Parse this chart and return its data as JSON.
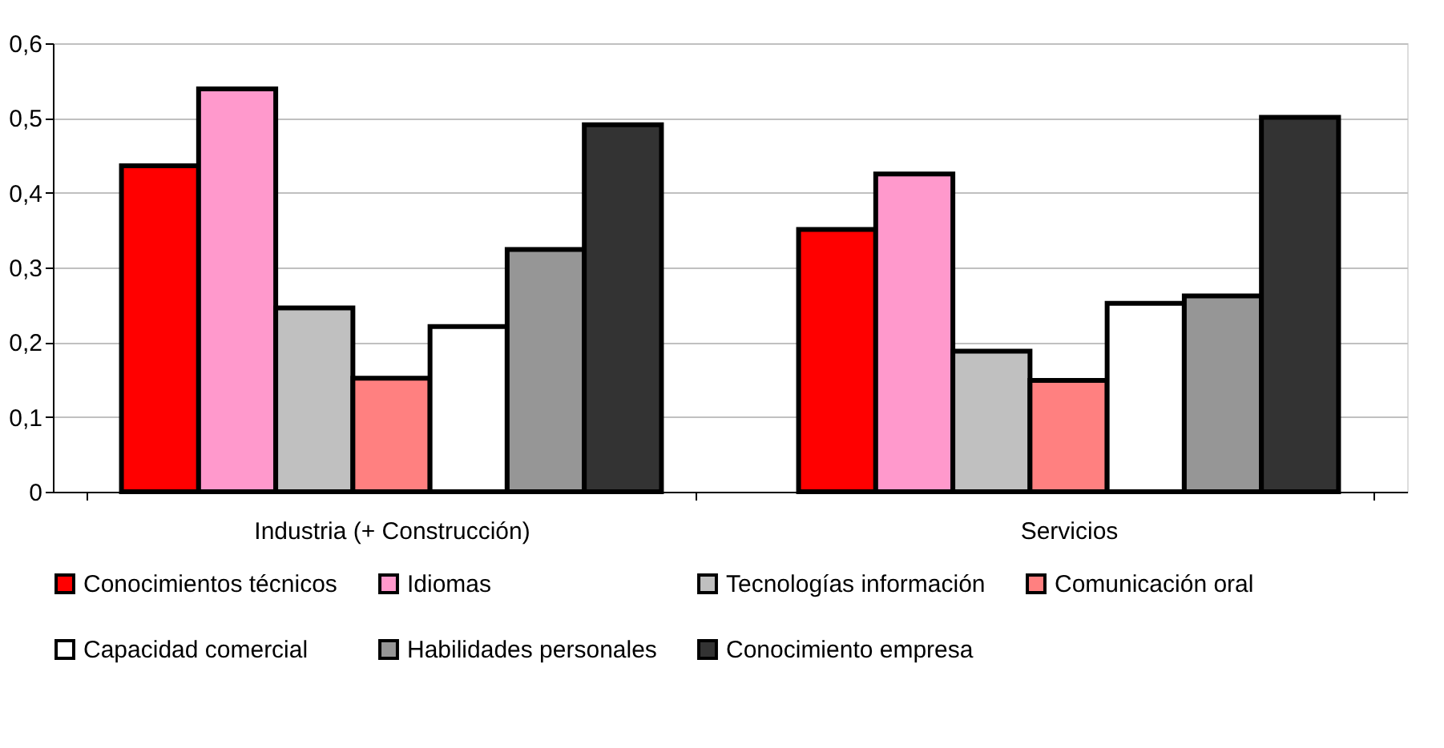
{
  "chart_data": {
    "type": "bar",
    "categories": [
      "Industria (+ Construcción)",
      "Servicios"
    ],
    "series": [
      {
        "name": "Conocimientos técnicos",
        "color": "#ff0000",
        "values": [
          0.436,
          0.351
        ]
      },
      {
        "name": "Idiomas",
        "color": "#ff99cc",
        "values": [
          0.539,
          0.425
        ]
      },
      {
        "name": "Tecnologías información",
        "color": "#c0c0c0",
        "values": [
          0.246,
          0.188
        ]
      },
      {
        "name": "Comunicación oral",
        "color": "#ff8080",
        "values": [
          0.152,
          0.149
        ]
      },
      {
        "name": "Capacidad comercial",
        "color": "#ffffff",
        "values": [
          0.221,
          0.252
        ]
      },
      {
        "name": "Habilidades personales",
        "color": "#969696",
        "values": [
          0.324,
          0.262
        ]
      },
      {
        "name": "Conocimiento empresa",
        "color": "#333333",
        "values": [
          0.491,
          0.501
        ]
      }
    ],
    "ylim": [
      0,
      0.6
    ],
    "yticks": [
      0,
      {
        "value": 0.1,
        "label": "0,1"
      },
      {
        "value": 0.2,
        "label": "0,2"
      },
      {
        "value": 0.3,
        "label": "0,3"
      },
      {
        "value": 0.4,
        "label": "0,4"
      },
      {
        "value": 0.5,
        "label": "0,5"
      },
      {
        "value": 0.6,
        "label": "0,6"
      }
    ],
    "grid": "y",
    "legend": "bottom"
  }
}
